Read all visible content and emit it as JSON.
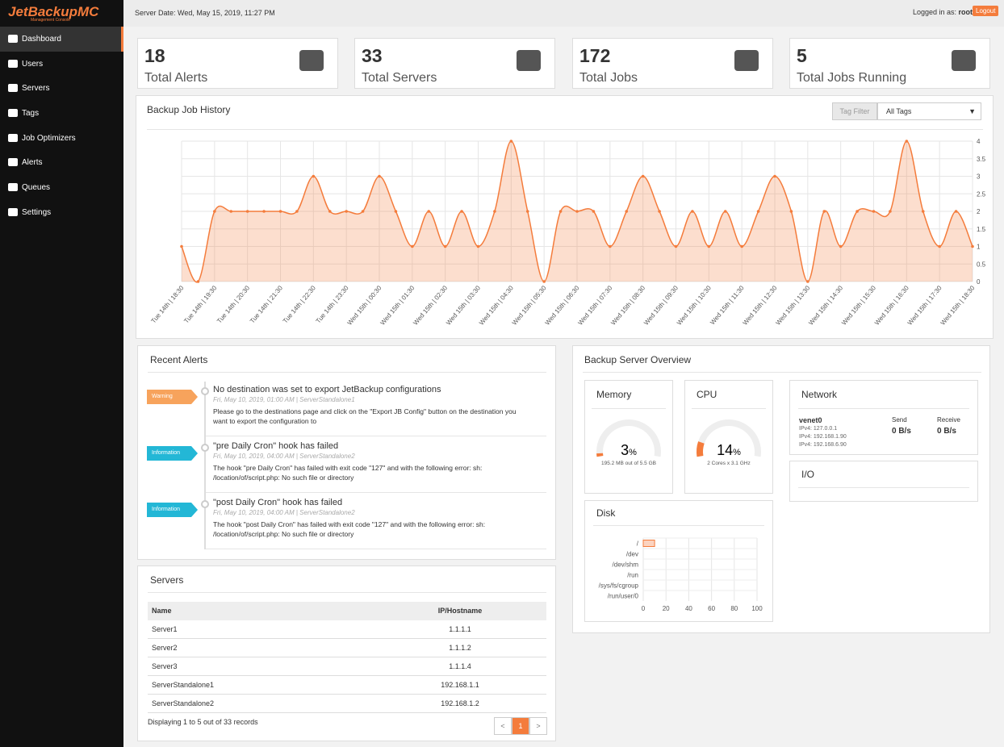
{
  "header": {
    "logo": "JetBackupMC",
    "logo_sub": "Management Console",
    "server_date": "Server Date: Wed, May 15, 2019, 11:27 PM",
    "logged_in": "Logged in as:",
    "user": "root",
    "logout": "Logout"
  },
  "menu": [
    "Dashboard",
    "Users",
    "Servers",
    "Tags",
    "Job Optimizers",
    "Alerts",
    "Queues",
    "Settings"
  ],
  "stats": [
    {
      "value": 18,
      "label": "Total Alerts"
    },
    {
      "value": 33,
      "label": "Total Servers"
    },
    {
      "value": 172,
      "label": "Total Jobs"
    },
    {
      "value": 5,
      "label": "Total Jobs Running"
    }
  ],
  "history": {
    "filter_label": "Tag Filter",
    "filter_value": "All Tags"
  },
  "chart_data": [
    {
      "type": "line",
      "title": "Backup Job History",
      "color": "#f47c3c",
      "grid": true,
      "categories": [
        "Tue 14th | 18:30",
        null,
        "Tue 14th | 19:30",
        null,
        "Tue 14th | 20:30",
        null,
        "Tue 14th | 21:30",
        null,
        "Tue 14th | 22:30",
        null,
        "Tue 14th | 23:30",
        null,
        "Wed 15th | 00:30",
        null,
        "Wed 15th | 01:30",
        null,
        "Wed 15th | 02:30",
        null,
        "Wed 15th | 03:30",
        null,
        "Wed 15th | 04:30",
        null,
        "Wed 15th | 05:30",
        null,
        "Wed 15th | 06:30",
        null,
        "Wed 15th | 07:30",
        null,
        "Wed 15th | 08:30",
        null,
        "Wed 15th | 09:30",
        null,
        "Wed 15th | 10:30",
        null,
        "Wed 15th | 11:30",
        null,
        "Wed 15th | 12:30",
        null,
        "Wed 15th | 13:30",
        null,
        "Wed 15th | 14:30",
        null,
        "Wed 15th | 15:30",
        null,
        "Wed 15th | 16:30",
        null,
        "Wed 15th | 17:30",
        null,
        "Wed 15th | 18:30"
      ],
      "values": [
        1,
        0,
        2,
        2,
        2,
        2,
        2,
        2,
        3,
        2,
        2,
        2,
        3,
        2,
        1,
        2,
        1,
        2,
        1,
        2,
        4,
        2,
        0,
        2,
        2,
        2,
        1,
        2,
        3,
        2,
        1,
        2,
        1,
        2,
        1,
        2,
        3,
        2,
        0,
        2,
        1,
        2,
        2,
        2,
        4,
        2,
        1,
        2,
        1
      ],
      "ylim": [
        0,
        4
      ],
      "yticks": [
        0,
        0.5,
        1,
        1.5,
        2,
        2.5,
        3,
        3.5,
        4
      ]
    },
    {
      "type": "hbar",
      "title": "Disk",
      "color": "#fbd3c0",
      "border": "#f47c3c",
      "grid": true,
      "categories": [
        "/",
        "/dev",
        "/dev/shm",
        "/run",
        "/sys/fs/cgroup",
        "/run/user/0"
      ],
      "values": [
        10,
        0,
        0,
        0,
        0,
        0
      ],
      "xlim": [
        0,
        100
      ],
      "xticks": [
        0,
        20,
        40,
        60,
        80,
        100
      ]
    }
  ],
  "alerts": {
    "title": "Recent Alerts",
    "items": [
      {
        "level": "Warning",
        "title": "No destination was set to export JetBackup configurations",
        "meta": "Fri, May 10, 2019, 01:00 AM | ServerStandalone1",
        "text": "Please go to the destinations page and click on the \"Export JB Config\" button on the destination you want to export the configuration to"
      },
      {
        "level": "Information",
        "title": "\"pre Daily Cron\" hook has failed",
        "meta": "Fri, May 10, 2019, 04:00 AM | ServerStandalone2",
        "text": "The hook \"pre Daily Cron\" has failed with exit code \"127\" and with the following error: sh: /location/of/script.php: No such file or directory"
      },
      {
        "level": "Information",
        "title": "\"post Daily Cron\" hook has failed",
        "meta": "Fri, May 10, 2019, 04:00 AM | ServerStandalone2",
        "text": "The hook \"post Daily Cron\" has failed with exit code \"127\" and with the following error: sh: /location/of/script.php: No such file or directory"
      }
    ]
  },
  "servers": {
    "title": "Servers",
    "columns": [
      "Name",
      "IP/Hostname"
    ],
    "rows": [
      [
        "Server1",
        "1.1.1.1"
      ],
      [
        "Server2",
        "1.1.1.2"
      ],
      [
        "Server3",
        "1.1.1.4"
      ],
      [
        "ServerStandalone1",
        "192.168.1.1"
      ],
      [
        "ServerStandalone2",
        "192.168.1.2"
      ]
    ],
    "footer": "Displaying 1 to 5 out of 33 records",
    "pages": [
      "<",
      "1",
      ">"
    ]
  },
  "overview": {
    "title": "Backup Server Overview",
    "memory": {
      "title": "Memory",
      "value": 3,
      "unit": "%",
      "detail": "195.2 MB out of 5.5 GB"
    },
    "cpu": {
      "title": "CPU",
      "value": 14,
      "unit": "%",
      "detail": "2 Cores x 3.1 GHz"
    },
    "network": {
      "title": "Network",
      "interface": "venet0",
      "ips": [
        "IPv4: 127.0.0.1",
        "IPv4: 192.168.1.90",
        "IPv4: 192.168.6.90"
      ],
      "send_label": "Send",
      "send": "0 B/s",
      "receive_label": "Receive",
      "receive": "0 B/s"
    },
    "io": {
      "title": "I/O"
    }
  }
}
